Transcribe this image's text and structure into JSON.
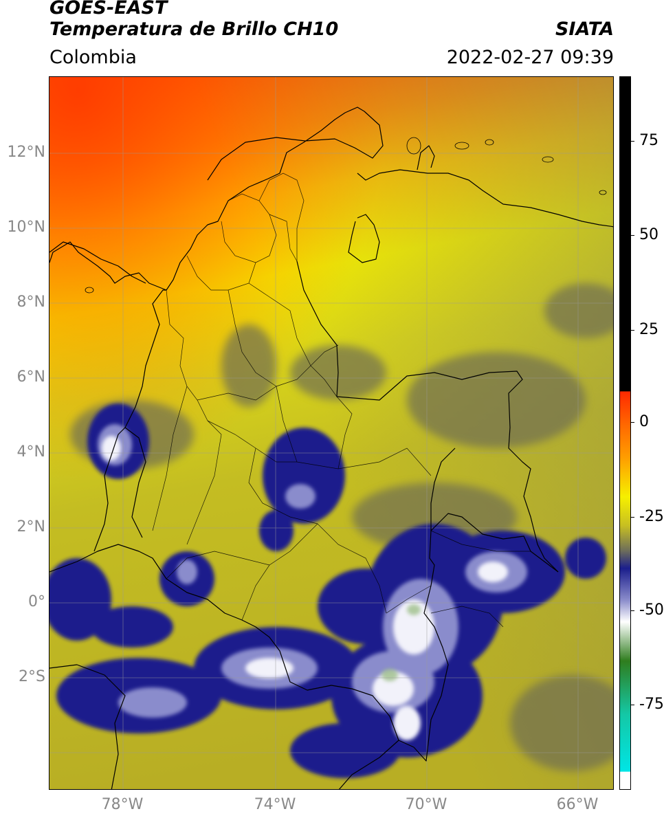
{
  "header": {
    "satellite": "GOES-EAST",
    "product": "Temperatura de Brillo CH10",
    "agency": "SIATA",
    "region": "Colombia",
    "timestamp": "2022-02-27 09:39"
  },
  "map": {
    "lat_labels": [
      "12°N",
      "10°N",
      "8°N",
      "6°N",
      "4°N",
      "2°N",
      "0°",
      "2°S"
    ],
    "lon_labels": [
      "78°W",
      "74°W",
      "70°W",
      "66°W"
    ],
    "lat_values": [
      12,
      10,
      8,
      6,
      4,
      2,
      0,
      -2
    ],
    "lon_values": [
      -78,
      -74,
      -70,
      -66
    ],
    "extent": {
      "lon_min": -79.55,
      "lon_max": -64.6,
      "lat_min": -4.6,
      "lat_max": 14.0
    }
  },
  "colorbar": {
    "labels": [
      "75",
      "50",
      "25",
      "0",
      "-25",
      "-50",
      "-75"
    ],
    "values": [
      75,
      50,
      25,
      0,
      -25,
      -50,
      -75
    ],
    "range": [
      -96,
      92
    ],
    "colors": {
      "black": "#000000",
      "red": "#ff2a00",
      "orange": "#ff9500",
      "yellow": "#f3f200",
      "olive": "#c9c020",
      "gray": "#6e6e5a",
      "navy": "#1b1e8c",
      "white": "#ffffff",
      "green": "#2f7d1e",
      "teal": "#14c8a6",
      "cyan": "#00e5e5"
    }
  }
}
